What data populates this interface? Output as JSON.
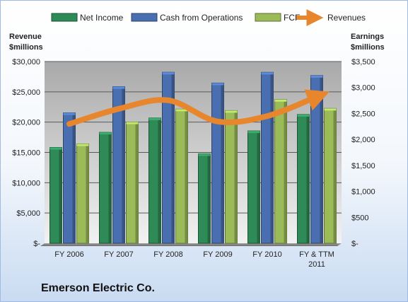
{
  "left_axis_title": [
    "Revenue",
    "$millions"
  ],
  "right_axis_title": [
    "Earnings",
    "$millions"
  ],
  "company_name": "Emerson Electric Co.",
  "chart_data": {
    "type": "bar",
    "categories": [
      "FY 2006",
      "FY 2007",
      "FY 2008",
      "FY 2009",
      "FY 2010",
      "FY & TTM 2011"
    ],
    "series": [
      {
        "name": "Net Income",
        "axis": "right",
        "color": "#2e8b57",
        "values": [
          1845,
          2136,
          2412,
          1724,
          2164,
          2480
        ]
      },
      {
        "name": "Cash from Operations",
        "axis": "right",
        "color": "#4a6fb0",
        "values": [
          2512,
          3016,
          3293,
          3086,
          3292,
          3230
        ]
      },
      {
        "name": "FCF",
        "axis": "right",
        "color": "#9bbb59",
        "values": [
          1914,
          2335,
          2583,
          2555,
          2768,
          2597
        ]
      },
      {
        "name": "Revenues",
        "axis": "left",
        "type": "line",
        "color": "#e8862d",
        "values": [
          19700,
          22200,
          23600,
          20100,
          21000,
          24200
        ]
      }
    ],
    "y_left": {
      "min": 0,
      "max": 30000,
      "ticks": [
        "$-",
        "$5,000",
        "$10,000",
        "$15,000",
        "$20,000",
        "$25,000",
        "$30,000"
      ]
    },
    "y_right": {
      "min": 0,
      "max": 3500,
      "ticks": [
        "$-",
        "$500",
        "$1,000",
        "$1,500",
        "$2,000",
        "$2,500",
        "$3,000",
        "$3,500"
      ]
    },
    "grid": true,
    "legend": "top"
  }
}
